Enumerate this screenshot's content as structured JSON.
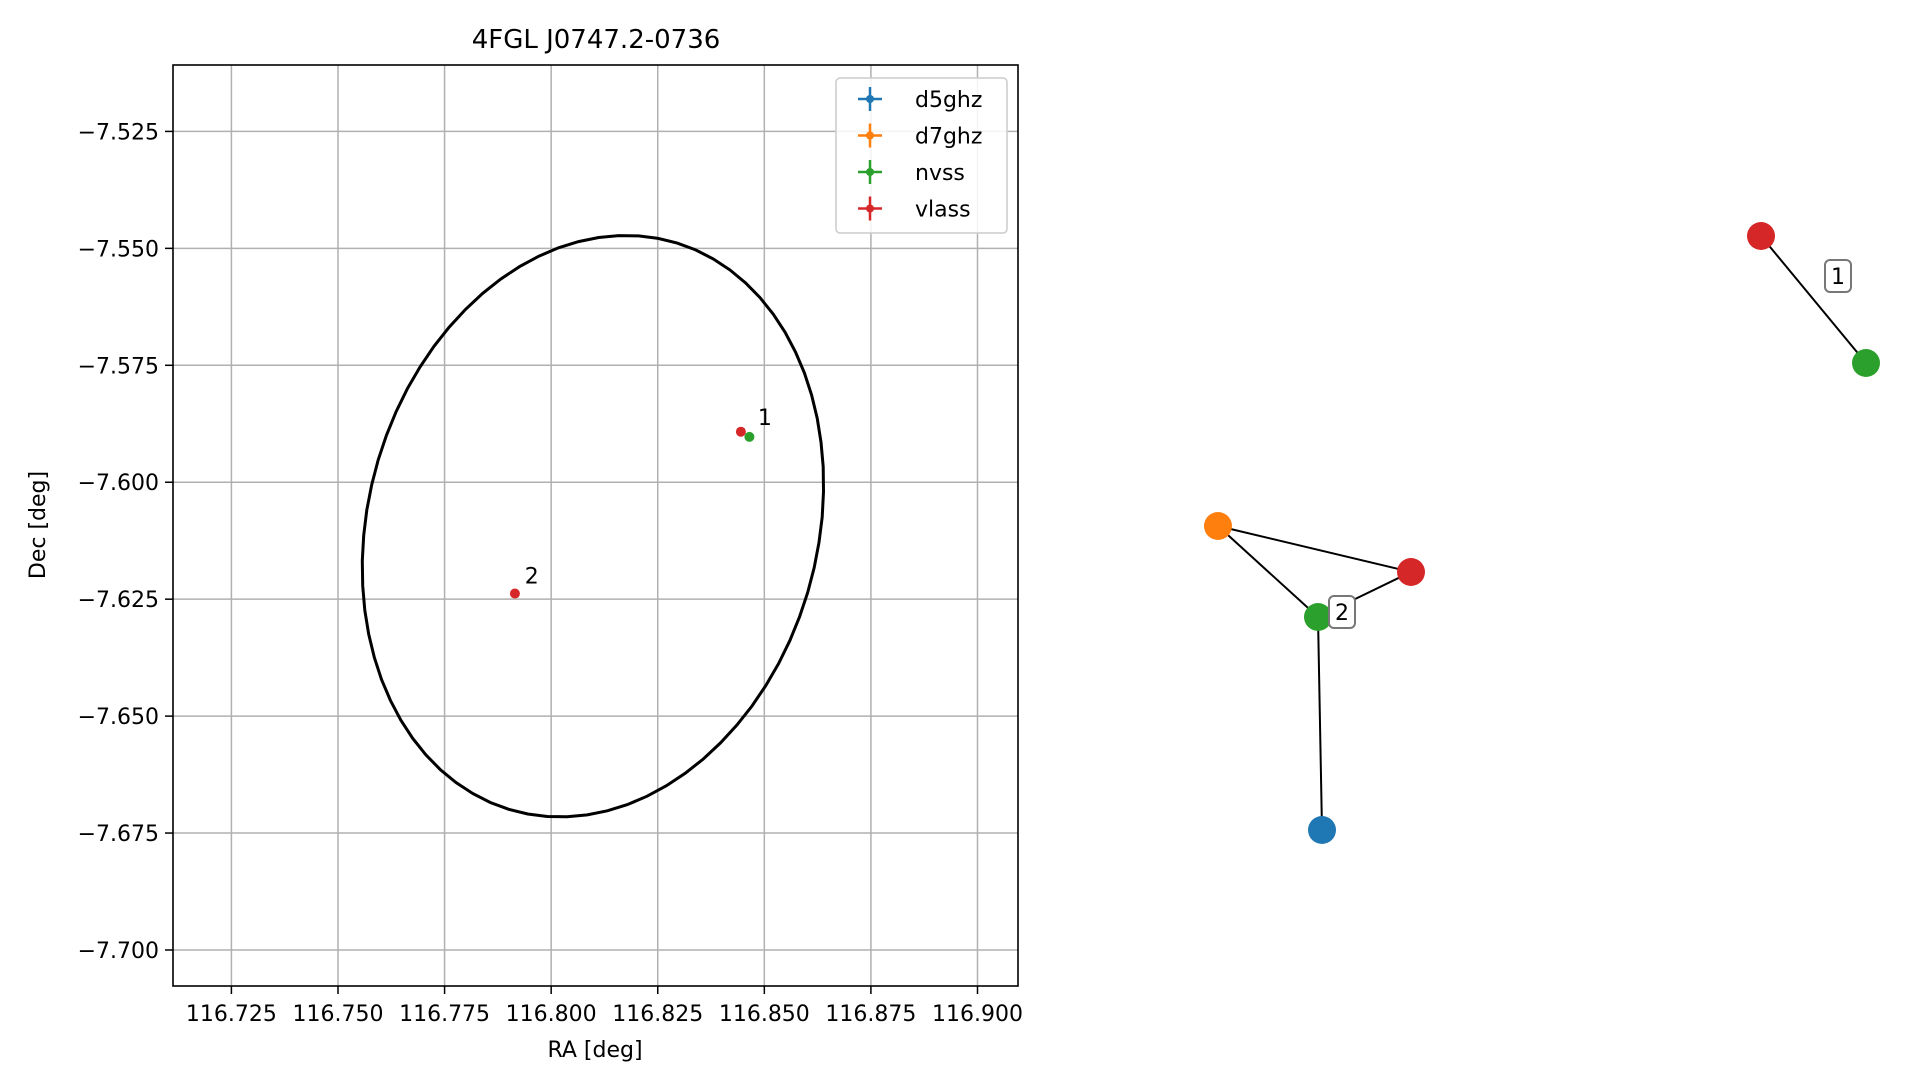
{
  "chart_data": [
    {
      "type": "scatter",
      "title": "4FGL J0747.2-0736",
      "xlabel": "RA [deg]",
      "ylabel": "Dec [deg]",
      "xlim": [
        116.7113,
        116.9095
      ],
      "ylim": [
        -7.7077,
        -7.5108
      ],
      "xticks": [
        116.725,
        116.75,
        116.775,
        116.8,
        116.825,
        116.85,
        116.875,
        116.9
      ],
      "xtick_labels": [
        "116.725",
        "116.750",
        "116.775",
        "116.800",
        "116.825",
        "116.850",
        "116.875",
        "116.900"
      ],
      "yticks": [
        -7.525,
        -7.55,
        -7.575,
        -7.6,
        -7.625,
        -7.65,
        -7.675,
        -7.7
      ],
      "ytick_labels": [
        "−7.525",
        "−7.550",
        "−7.575",
        "−7.600",
        "−7.625",
        "−7.650",
        "−7.675",
        "−7.700"
      ],
      "grid": true,
      "legend_position": "top-right",
      "series": [
        {
          "name": "d5ghz",
          "color": "#1f77b4",
          "points": []
        },
        {
          "name": "d7ghz",
          "color": "#ff7f0e",
          "points": []
        },
        {
          "name": "nvss",
          "color": "#2ca02c",
          "points": [
            {
              "x": 116.8465,
              "y": -7.5903
            }
          ]
        },
        {
          "name": "vlass",
          "color": "#d62728",
          "points": [
            {
              "x": 116.8445,
              "y": -7.5892
            },
            {
              "x": 116.7915,
              "y": -7.6238
            }
          ]
        }
      ],
      "annotations": [
        {
          "text": "1",
          "x": 116.8485,
          "y": -7.5878
        },
        {
          "text": "2",
          "x": 116.7938,
          "y": -7.6217
        }
      ],
      "ellipse": {
        "center_ra": 116.8098,
        "center_dec": -7.6094,
        "semi_major_deg": 0.0637,
        "semi_minor_deg": 0.0518,
        "angle_deg": -22,
        "color": "#000000"
      }
    },
    {
      "type": "network",
      "nodes": [
        {
          "id": "n1",
          "color": "#d62728"
        },
        {
          "id": "n2",
          "color": "#2ca02c"
        },
        {
          "id": "n3",
          "color": "#ff7f0e"
        },
        {
          "id": "n4",
          "color": "#d62728"
        },
        {
          "id": "n5",
          "color": "#2ca02c"
        },
        {
          "id": "n6",
          "color": "#1f77b4"
        }
      ],
      "edges": [
        [
          "n1",
          "n2"
        ],
        [
          "n3",
          "n4"
        ],
        [
          "n3",
          "n5"
        ],
        [
          "n4",
          "n5"
        ],
        [
          "n5",
          "n6"
        ]
      ],
      "group_labels": [
        {
          "text": "1",
          "group": [
            "n1",
            "n2"
          ]
        },
        {
          "text": "2",
          "group": [
            "n3",
            "n4",
            "n5",
            "n6"
          ]
        }
      ]
    }
  ]
}
